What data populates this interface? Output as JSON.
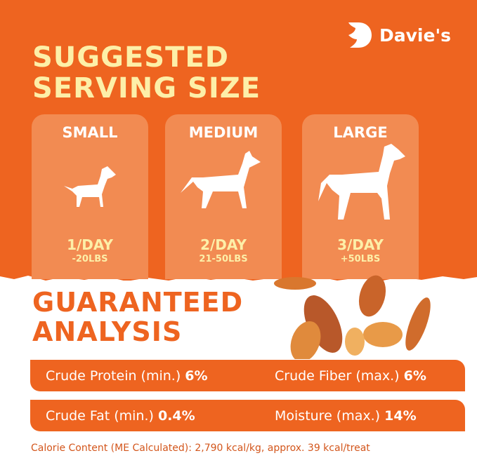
{
  "brand": {
    "name": "Davie's",
    "color": "#ee6420"
  },
  "serving": {
    "title_line1": "SUGGESTED",
    "title_line2": "SERVING SIZE",
    "cards": [
      {
        "size": "SMALL",
        "per_day": "1/DAY",
        "weight": "-20LBS",
        "icon": "small-dog-icon"
      },
      {
        "size": "MEDIUM",
        "per_day": "2/DAY",
        "weight": "21-50LBS",
        "icon": "medium-dog-icon"
      },
      {
        "size": "LARGE",
        "per_day": "3/DAY",
        "weight": "+50LBS",
        "icon": "large-dog-icon"
      }
    ]
  },
  "analysis": {
    "title_line1": "GUARANTEED",
    "title_line2": "ANALYSIS",
    "rows": [
      [
        {
          "label": "Crude Protein (min.)",
          "value": "6%"
        },
        {
          "label": "Crude Fiber (max.)",
          "value": "6%"
        }
      ],
      [
        {
          "label": "Crude Fat (min.)",
          "value": "0.4%"
        },
        {
          "label": "Moisture (max.)",
          "value": "14%"
        }
      ]
    ],
    "calorie_note": "Calorie Content (ME Calculated): 2,790 kcal/kg, approx. 39 kcal/treat"
  }
}
